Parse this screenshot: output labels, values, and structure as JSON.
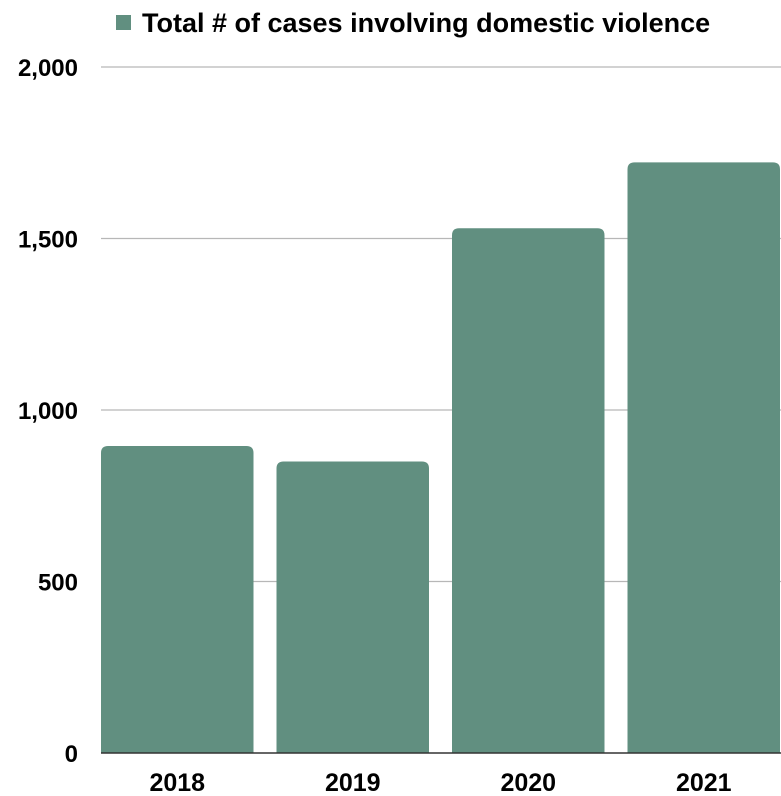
{
  "chart_data": {
    "type": "bar",
    "categories": [
      "2018",
      "2019",
      "2020",
      "2021"
    ],
    "series": [
      {
        "name": "Total # of cases involving domestic violence",
        "values": [
          895,
          850,
          1530,
          1722
        ],
        "color": "#618f80"
      }
    ],
    "y_ticks": [
      "0",
      "500",
      "1,000",
      "1,500",
      "2,000"
    ],
    "ylim": [
      0,
      2000
    ],
    "grid": true,
    "legend_position": "top",
    "title": "",
    "xlabel": "",
    "ylabel": ""
  }
}
